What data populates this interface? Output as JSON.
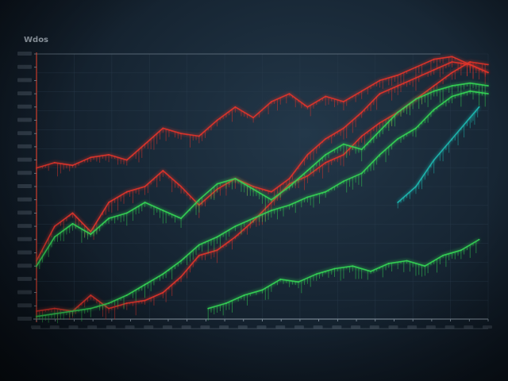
{
  "chart_data": {
    "type": "line",
    "title": "Wdos",
    "xlabel": "",
    "ylabel": "",
    "grid": true,
    "legend": "none",
    "xlim": [
      0,
      100
    ],
    "ylim": [
      0,
      100
    ],
    "colors": {
      "red": "#e0342c",
      "green": "#35d455",
      "teal": "#1fb8b0",
      "axis": "#8a99a6",
      "grid": "#2a3d4e"
    },
    "series": [
      {
        "color": "#e0342c",
        "x": [
          0,
          4,
          8,
          12,
          16,
          20,
          24,
          28,
          32,
          36,
          40,
          44,
          48,
          52,
          56,
          60,
          64,
          68,
          72,
          76,
          80,
          84,
          88,
          92,
          96,
          100
        ],
        "values": [
          3,
          4,
          3,
          9,
          4,
          6,
          7,
          10,
          16,
          24,
          26,
          31,
          37,
          44,
          51,
          54,
          59,
          62,
          69,
          74,
          78,
          83,
          88,
          93,
          97,
          96
        ]
      },
      {
        "color": "#e0342c",
        "x": [
          0,
          4,
          8,
          12,
          16,
          20,
          24,
          28,
          32,
          36,
          40,
          44,
          48,
          52,
          56,
          60,
          64,
          68,
          72,
          76,
          80,
          84,
          88,
          92,
          96,
          100
        ],
        "values": [
          22,
          35,
          40,
          33,
          44,
          48,
          50,
          56,
          50,
          43,
          49,
          53,
          50,
          48,
          53,
          62,
          68,
          72,
          78,
          85,
          88,
          91,
          94,
          97,
          96,
          93
        ]
      },
      {
        "color": "#e0342c",
        "x": [
          0,
          4,
          8,
          12,
          16,
          20,
          24,
          28,
          32,
          36,
          40,
          44,
          48,
          52,
          56,
          60,
          64,
          68,
          72,
          76,
          80,
          84,
          88,
          92,
          96,
          100
        ],
        "values": [
          57,
          59,
          58,
          61,
          62,
          60,
          66,
          72,
          70,
          69,
          75,
          80,
          76,
          82,
          85,
          80,
          84,
          82,
          86,
          90,
          92,
          95,
          98,
          99,
          96,
          93
        ]
      },
      {
        "color": "#35d455",
        "x": [
          0,
          4,
          8,
          12,
          16,
          20,
          24,
          28,
          32,
          36,
          40,
          44,
          48,
          52,
          56,
          60,
          64,
          68,
          72,
          76,
          80,
          84,
          88,
          92,
          96,
          100
        ],
        "values": [
          20,
          31,
          36,
          32,
          38,
          40,
          44,
          41,
          38,
          45,
          51,
          53,
          49,
          45,
          50,
          56,
          62,
          66,
          64,
          71,
          78,
          83,
          86,
          88,
          89,
          88
        ]
      },
      {
        "color": "#35d455",
        "x": [
          0,
          4,
          8,
          12,
          16,
          20,
          24,
          28,
          32,
          36,
          40,
          44,
          48,
          52,
          56,
          60,
          64,
          68,
          72,
          76,
          80,
          84,
          88,
          92,
          96,
          100
        ],
        "values": [
          1,
          2,
          3,
          4,
          6,
          9,
          13,
          17,
          22,
          28,
          31,
          35,
          38,
          41,
          43,
          46,
          48,
          52,
          55,
          62,
          68,
          72,
          79,
          84,
          86,
          85
        ]
      },
      {
        "color": "#35d455",
        "x": [
          38,
          42,
          46,
          50,
          54,
          58,
          62,
          66,
          70,
          74,
          78,
          82,
          86,
          90,
          94,
          98
        ],
        "values": [
          4,
          6,
          9,
          11,
          15,
          14,
          17,
          19,
          20,
          18,
          21,
          22,
          20,
          24,
          26,
          30
        ]
      },
      {
        "color": "#1fb8b0",
        "x": [
          80,
          84,
          88,
          92,
          96,
          98
        ],
        "values": [
          44,
          50,
          60,
          68,
          76,
          80
        ]
      }
    ]
  }
}
